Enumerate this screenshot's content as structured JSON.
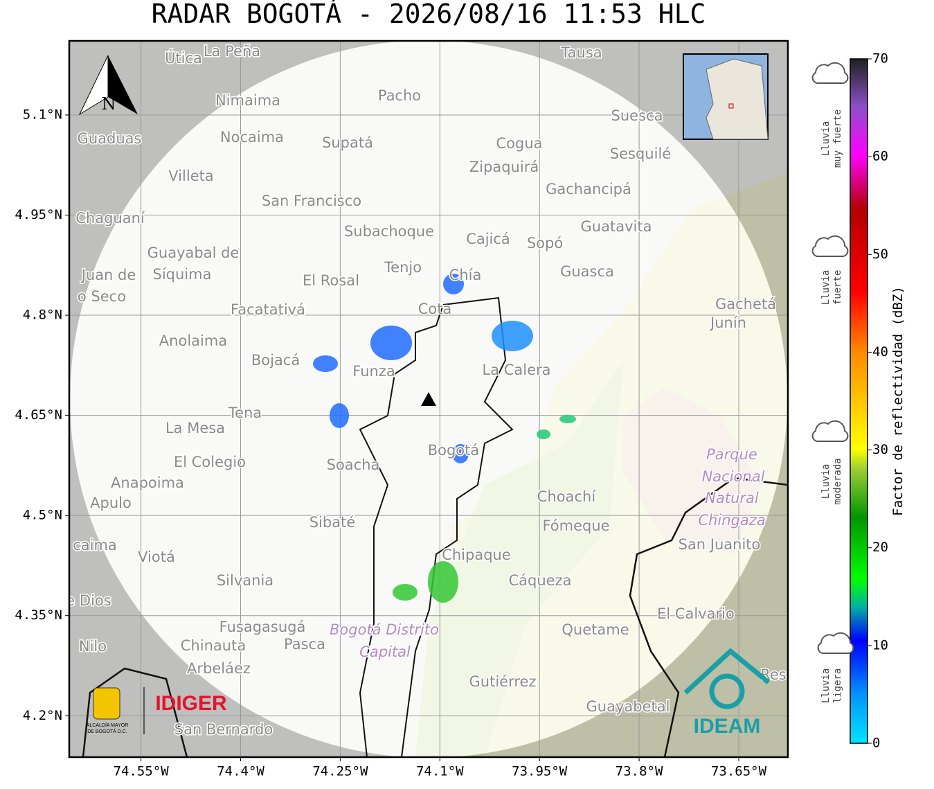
{
  "map": {
    "title": "RADAR BOGOTÁ - 2026/08/16 11:53 HLC",
    "xlim": [
      -74.658,
      -73.576
    ],
    "ylim": [
      4.138,
      5.211
    ],
    "xticks": [
      {
        "value": -74.55,
        "label": "74.55°W"
      },
      {
        "value": -74.4,
        "label": "74.4°W"
      },
      {
        "value": -74.25,
        "label": "74.25°W"
      },
      {
        "value": -74.1,
        "label": "74.1°W"
      },
      {
        "value": -73.95,
        "label": "73.95°W"
      },
      {
        "value": -73.8,
        "label": "73.8°W"
      },
      {
        "value": -73.65,
        "label": "73.65°W"
      }
    ],
    "yticks": [
      {
        "value": 5.1,
        "label": "5.1°N"
      },
      {
        "value": 4.95,
        "label": "4.95°N"
      },
      {
        "value": 4.8,
        "label": "4.8°N"
      },
      {
        "value": 4.65,
        "label": "4.65°N"
      },
      {
        "value": 4.5,
        "label": "4.5°N"
      },
      {
        "value": 4.35,
        "label": "4.35°N"
      },
      {
        "value": 4.2,
        "label": "4.2°N"
      }
    ],
    "grid": true,
    "north": "N",
    "colorbar": {
      "label": "Factor de reflectividad (dBZ)",
      "lim": [
        0,
        70
      ],
      "ticks": [
        0,
        10,
        20,
        30,
        40,
        50,
        60,
        70
      ]
    },
    "rain_classes": [
      [
        "Lluvia",
        "muy fuerte"
      ],
      [
        "Lluvia",
        "fuerte"
      ],
      [
        "Lluvia",
        "moderada"
      ],
      [
        "Lluvia",
        "ligera"
      ]
    ],
    "logos": {
      "idiger": "IDIGER",
      "alcaldia": [
        "ALCALDÍA MAYOR",
        "DE BOGOTÁ D.C."
      ],
      "ideam": "IDEAM"
    },
    "places": [
      "La Peña",
      "Útica",
      "Tausa",
      "Pacho",
      "Nimaima",
      "Guaduas",
      "Nocaima",
      "Supatá",
      "Cogua",
      "Suesca",
      "Sesquilé",
      "Zipaquirá",
      "Villeta",
      "Gachancipá",
      "San Francisco",
      "Chaguaní",
      "Guatavita",
      "Subachoque",
      "Cajicá",
      "Sopó",
      "Guayabal de",
      "Síquima",
      "Juan de",
      "o Seco",
      "Tenjo",
      "Chía",
      "Guasca",
      "El Rosal",
      "Cota",
      "Facatativá",
      "Gachetá",
      "Junín",
      "Anolaima",
      "Bojacá",
      "Funza",
      "La Calera",
      "Tena",
      "La Mesa",
      "El Colegio",
      "Soacha",
      "Bogotá",
      "Anapoima",
      "Apulo",
      "Choachí",
      "Sibaté",
      "Fómeque",
      "San Juanito",
      "caima",
      "Viotá",
      "Chipaque",
      "Silvania",
      "Cáqueza",
      "e Dios",
      "El Calvario",
      "Fusagasugá",
      "Quetame",
      "Nilo",
      "Chinauta",
      "Pasca",
      "Arbeláez",
      "Gutiérrez",
      "Res",
      "Guayabetal",
      "San Bernardo"
    ],
    "park_labels": [
      "Parque",
      "Nacional",
      "Natural",
      "Chingaza",
      "Bogotá Distrito",
      "Capital"
    ]
  }
}
